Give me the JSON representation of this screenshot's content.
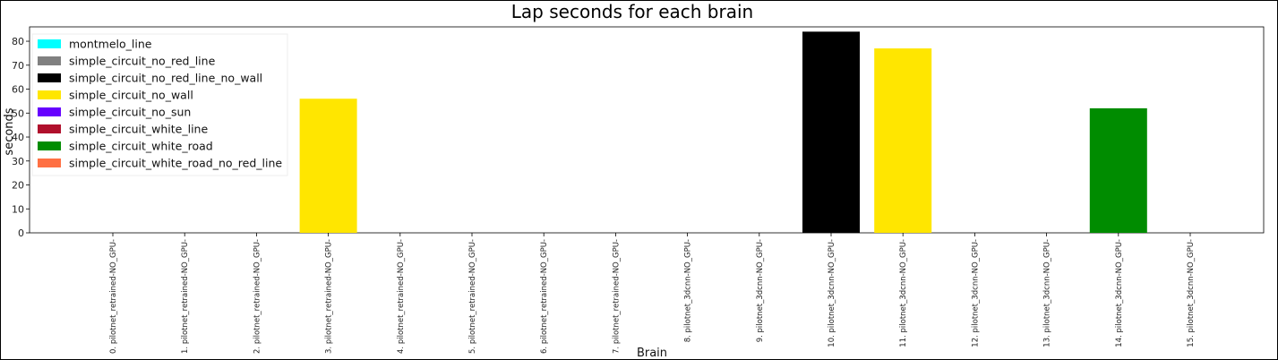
{
  "chart_data": {
    "type": "bar",
    "title": "Lap seconds for each brain",
    "xlabel": "Brain",
    "ylabel": "seconds",
    "ylim": [
      0,
      86
    ],
    "yticks": [
      0,
      10,
      20,
      30,
      40,
      50,
      60,
      70,
      80
    ],
    "grid": false,
    "legend_position": "top-left",
    "categories": [
      "0. pilotnet_retrained-NO_GPU-",
      "1. pilotnet_retrained-NO_GPU-",
      "2. pilotnet_retrained-NO_GPU-",
      "3. pilotnet_retrained-NO_GPU-",
      "4. pilotnet_retrained-NO_GPU-",
      "5. pilotnet_retrained-NO_GPU-",
      "6. pilotnet_retrained-NO_GPU-",
      "7. pilotnet_retrained-NO_GPU-",
      "8. pilotnet_3dcnn-NO_GPU-",
      "9. pilotnet_3dcnn-NO_GPU-",
      "10. pilotnet_3dcnn-NO_GPU-",
      "11. pilotnet_3dcnn-NO_GPU-",
      "12. pilotnet_3dcnn-NO_GPU-",
      "13. pilotnet_3dcnn-NO_GPU-",
      "14. pilotnet_3dcnn-NO_GPU-",
      "15. pilotnet_3dcnn-NO_GPU-"
    ],
    "series": [
      {
        "name": "montmelo_line",
        "color": "#00ffff",
        "values": [
          0,
          0,
          0,
          0,
          0,
          0,
          0,
          0,
          0,
          0,
          0,
          0,
          0,
          0,
          0,
          0
        ]
      },
      {
        "name": "simple_circuit_no_red_line",
        "color": "#808080",
        "values": [
          0,
          0,
          0,
          0,
          0,
          0,
          0,
          0,
          0,
          0,
          0,
          0,
          0,
          0,
          0,
          0
        ]
      },
      {
        "name": "simple_circuit_no_red_line_no_wall",
        "color": "#000000",
        "values": [
          0,
          0,
          0,
          0,
          0,
          0,
          0,
          0,
          0,
          0,
          84,
          0,
          0,
          0,
          0,
          0
        ]
      },
      {
        "name": "simple_circuit_no_wall",
        "color": "#ffe600",
        "values": [
          0,
          0,
          0,
          56,
          0,
          0,
          0,
          0,
          0,
          0,
          0,
          77,
          0,
          0,
          0,
          0
        ]
      },
      {
        "name": "simple_circuit_no_sun",
        "color": "#6600ff",
        "values": [
          0,
          0,
          0,
          0,
          0,
          0,
          0,
          0,
          0,
          0,
          0,
          0,
          0,
          0,
          0,
          0
        ]
      },
      {
        "name": "simple_circuit_white_line",
        "color": "#b0102c",
        "values": [
          0,
          0,
          0,
          0,
          0,
          0,
          0,
          0,
          0,
          0,
          0,
          0,
          0,
          0,
          0,
          0
        ]
      },
      {
        "name": "simple_circuit_white_road",
        "color": "#008c00",
        "values": [
          0,
          0,
          0,
          0,
          0,
          0,
          0,
          0,
          0,
          0,
          0,
          0,
          0,
          0,
          52,
          0
        ]
      },
      {
        "name": "simple_circuit_white_road_no_red_line",
        "color": "#ff7043",
        "values": [
          0,
          0,
          0,
          0,
          0,
          0,
          0,
          0,
          0,
          0,
          0,
          0,
          0,
          0,
          0,
          0
        ]
      }
    ]
  }
}
